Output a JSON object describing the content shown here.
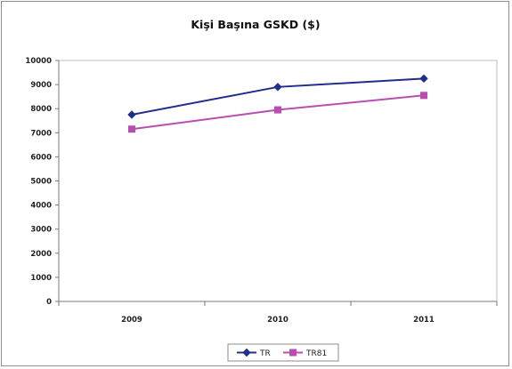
{
  "chart_data": {
    "type": "line",
    "title": "Kişi Başına GSKD ($)",
    "xlabel": "",
    "ylabel": "",
    "categories": [
      "2009",
      "2010",
      "2011"
    ],
    "ylim": [
      0,
      10000
    ],
    "yticks": [
      "0",
      "1000",
      "2000",
      "3000",
      "4000",
      "5000",
      "6000",
      "7000",
      "8000",
      "9000",
      "10000"
    ],
    "grid": false,
    "legend_position": "bottom",
    "series": [
      {
        "name": "TR",
        "values": [
          7750,
          8900,
          9250
        ],
        "color": "#1f2f8a",
        "marker": "diamond"
      },
      {
        "name": "TR81",
        "values": [
          7150,
          7950,
          8550
        ],
        "color": "#b84fb0",
        "marker": "square"
      }
    ]
  }
}
